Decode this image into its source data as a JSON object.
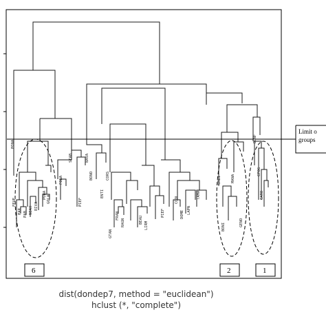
{
  "figure": {
    "caption_line1": "dist(dondep7, method = \"euclidean\")",
    "caption_line2": "hclust (*, \"complete\")",
    "limit_line1": "Limit o",
    "limit_line2": "groups",
    "group_labels": [
      "6",
      "2",
      "1"
    ]
  },
  "leaves": [
    {
      "text": "PONA"
    },
    {
      "text": "FEVE"
    },
    {
      "text": "PAR"
    },
    {
      "text": "PAB"
    },
    {
      "text": "NOAH"
    },
    {
      "text": "RIVA"
    },
    {
      "text": "PONA"
    },
    {
      "text": "GOLA"
    },
    {
      "text": "FONA"
    },
    {
      "text": "STAB"
    },
    {
      "text": "BAVA"
    },
    {
      "text": "BONO"
    },
    {
      "text": "PIEF"
    },
    {
      "text": "ENTI"
    },
    {
      "text": "CORS"
    },
    {
      "text": "FRAN"
    },
    {
      "text": "GTAN"
    },
    {
      "text": "RAGN"
    },
    {
      "text": "BEAU"
    },
    {
      "text": "LIRM"
    },
    {
      "text": "PIEF"
    },
    {
      "text": "COOL"
    },
    {
      "text": "DOME"
    },
    {
      "text": "LAPN"
    },
    {
      "text": "TAMA"
    },
    {
      "text": "CREI"
    },
    {
      "text": "BONI"
    },
    {
      "text": "MANA"
    },
    {
      "text": "GENO"
    },
    {
      "text": "BONF"
    },
    {
      "text": "CPOG"
    },
    {
      "text": "CARO"
    }
  ],
  "colors": {
    "line": "#1a1a1a",
    "frame": "#000000",
    "caption": "#333333"
  }
}
